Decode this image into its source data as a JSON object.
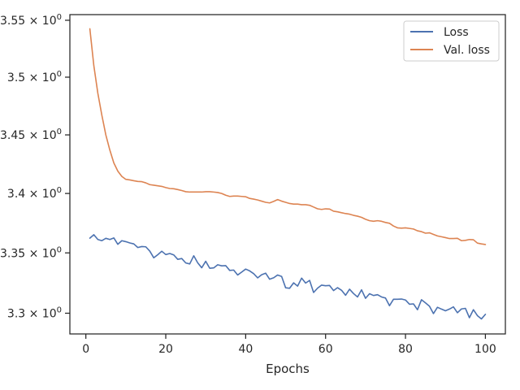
{
  "chart_data": {
    "type": "line",
    "title": "",
    "xlabel": "Epochs",
    "ylabel": "",
    "xlim": [
      -4,
      105
    ],
    "ylim": [
      3.283,
      3.555
    ],
    "yscale": "log",
    "grid": false,
    "legend_position": "top-right",
    "x_ticks": [
      {
        "value": 0,
        "label": "0"
      },
      {
        "value": 20,
        "label": "20"
      },
      {
        "value": 40,
        "label": "40"
      },
      {
        "value": 60,
        "label": "60"
      },
      {
        "value": 80,
        "label": "80"
      },
      {
        "value": 100,
        "label": "100"
      }
    ],
    "y_ticks": [
      {
        "value": 3.3,
        "mantissa": "3.3"
      },
      {
        "value": 3.35,
        "mantissa": "3.35"
      },
      {
        "value": 3.4,
        "mantissa": "3.4"
      },
      {
        "value": 3.45,
        "mantissa": "3.45"
      },
      {
        "value": 3.5,
        "mantissa": "3.5"
      },
      {
        "value": 3.55,
        "mantissa": "3.55"
      }
    ],
    "y_tick_suffix": "× 10",
    "y_tick_exponent": "0",
    "x": [
      1,
      2,
      3,
      4,
      5,
      6,
      7,
      8,
      9,
      10,
      11,
      12,
      13,
      14,
      15,
      16,
      17,
      18,
      19,
      20,
      21,
      22,
      23,
      24,
      25,
      26,
      27,
      28,
      29,
      30,
      31,
      32,
      33,
      34,
      35,
      36,
      37,
      38,
      39,
      40,
      41,
      42,
      43,
      44,
      45,
      46,
      47,
      48,
      49,
      50,
      51,
      52,
      53,
      54,
      55,
      56,
      57,
      58,
      59,
      60,
      61,
      62,
      63,
      64,
      65,
      66,
      67,
      68,
      69,
      70,
      71,
      72,
      73,
      74,
      75,
      76,
      77,
      78,
      79,
      80,
      81,
      82,
      83,
      84,
      85,
      86,
      87,
      88,
      89,
      90,
      91,
      92,
      93,
      94,
      95,
      96,
      97,
      98,
      99,
      100
    ],
    "series": [
      {
        "name": "Loss",
        "color": "#4c72b0",
        "values": [
          3.3623,
          3.3652,
          3.3612,
          3.3602,
          3.3622,
          3.3612,
          3.3625,
          3.3572,
          3.3602,
          3.3594,
          3.3583,
          3.3575,
          3.3545,
          3.3553,
          3.3551,
          3.3515,
          3.3459,
          3.3485,
          3.3514,
          3.3486,
          3.3495,
          3.3483,
          3.3446,
          3.3453,
          3.3416,
          3.3408,
          3.3476,
          3.3417,
          3.3376,
          3.343,
          3.3372,
          3.3375,
          3.3401,
          3.3392,
          3.3394,
          3.3354,
          3.3357,
          3.3316,
          3.334,
          3.3365,
          3.335,
          3.3327,
          3.3292,
          3.3318,
          3.3331,
          3.3281,
          3.3293,
          3.3316,
          3.3304,
          3.321,
          3.3206,
          3.3251,
          3.3224,
          3.329,
          3.3249,
          3.3271,
          3.3171,
          3.3207,
          3.3232,
          3.3227,
          3.3229,
          3.3187,
          3.3211,
          3.3189,
          3.3148,
          3.3198,
          3.3162,
          3.3134,
          3.3193,
          3.3123,
          3.3161,
          3.3146,
          3.3153,
          3.3134,
          3.3125,
          3.3062,
          3.3115,
          3.3115,
          3.3117,
          3.3109,
          3.3074,
          3.3077,
          3.3029,
          3.3111,
          3.3085,
          3.3058,
          3.2997,
          3.3049,
          3.3034,
          3.302,
          3.3034,
          3.3052,
          3.3004,
          3.3035,
          3.304,
          3.2963,
          3.3029,
          3.298,
          3.2953,
          3.2991
        ]
      },
      {
        "name": "Val. loss",
        "color": "#dd8452",
        "values": [
          3.5425,
          3.51,
          3.486,
          3.467,
          3.45,
          3.437,
          3.426,
          3.419,
          3.4145,
          3.412,
          3.4115,
          3.4108,
          3.4102,
          3.41,
          3.409,
          3.4075,
          3.407,
          3.4065,
          3.406,
          3.405,
          3.4042,
          3.404,
          3.4033,
          3.4025,
          3.4015,
          3.4012,
          3.4012,
          3.4012,
          3.4012,
          3.4015,
          3.4015,
          3.4012,
          3.4008,
          3.4,
          3.3985,
          3.3975,
          3.3978,
          3.3978,
          3.3975,
          3.3972,
          3.3958,
          3.3952,
          3.3945,
          3.3935,
          3.3925,
          3.392,
          3.3933,
          3.3948,
          3.3935,
          3.3925,
          3.3915,
          3.391,
          3.391,
          3.3905,
          3.3905,
          3.39,
          3.3885,
          3.387,
          3.3865,
          3.387,
          3.3868,
          3.385,
          3.3845,
          3.3837,
          3.383,
          3.3825,
          3.3815,
          3.3808,
          3.3798,
          3.3782,
          3.377,
          3.3765,
          3.377,
          3.3765,
          3.3755,
          3.3748,
          3.3725,
          3.371,
          3.3707,
          3.371,
          3.3705,
          3.37,
          3.3685,
          3.3678,
          3.3665,
          3.3668,
          3.3655,
          3.3642,
          3.3635,
          3.3628,
          3.362,
          3.362,
          3.3622,
          3.3602,
          3.3605,
          3.3612,
          3.361,
          3.3582,
          3.3575,
          3.357
        ]
      }
    ]
  }
}
